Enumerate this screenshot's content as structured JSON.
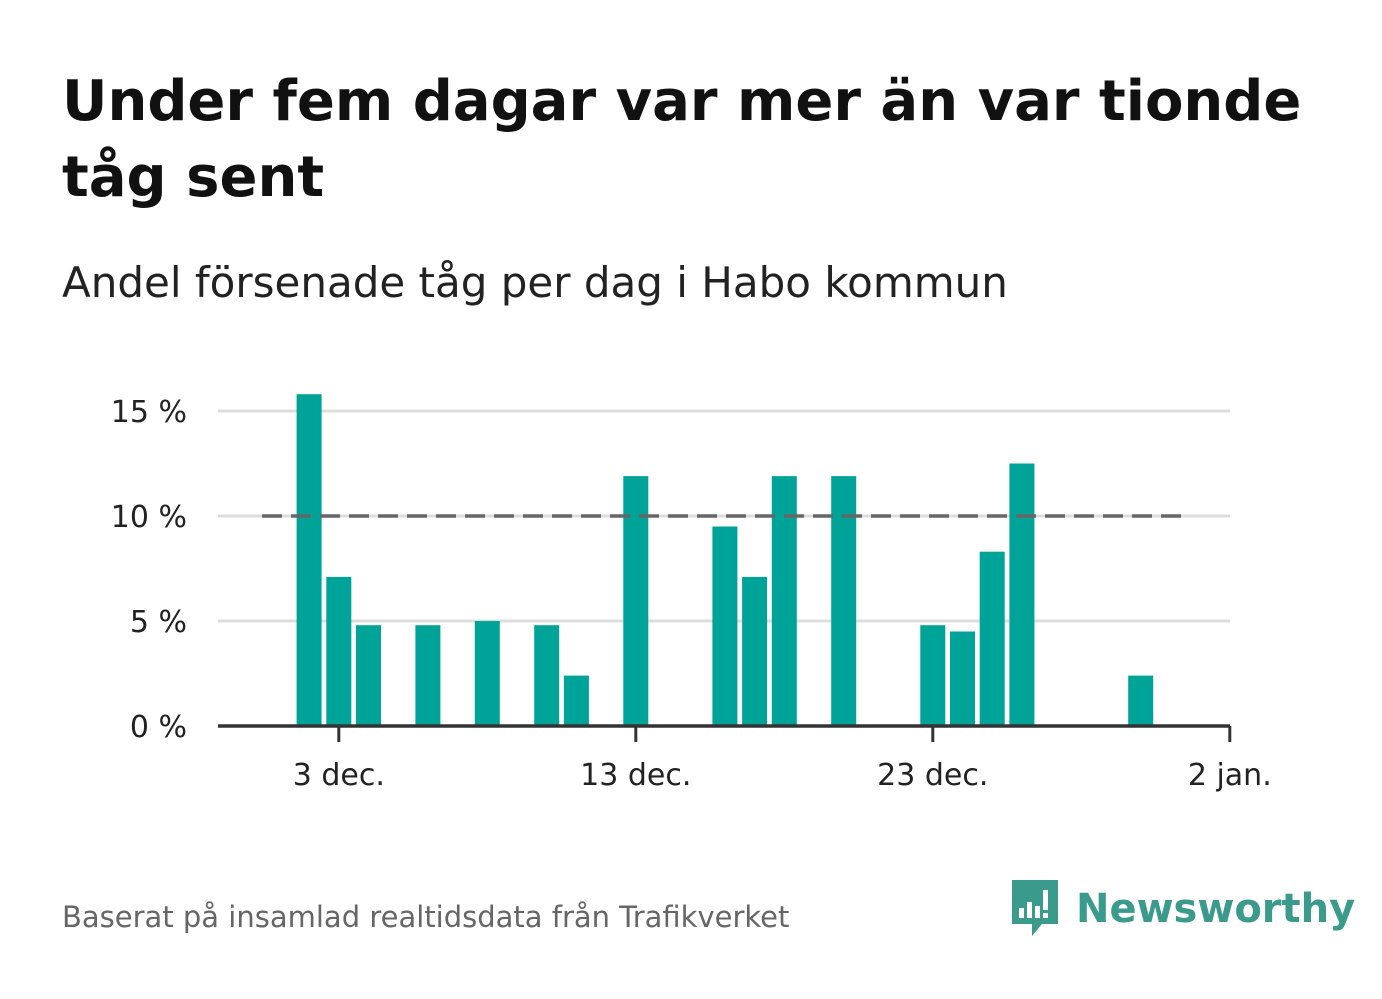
{
  "header": {
    "title": "Under fem dagar var mer än var tionde tåg sent",
    "subtitle": "Andel försenade tåg per dag i Habo kommun"
  },
  "footer": {
    "source": "Baserat på insamlad realtidsdata från Trafikverket",
    "brand": "Newsworthy",
    "brand_icon": "newsworthy-logo-icon"
  },
  "colors": {
    "bar": "#00a398",
    "reference_line": "#666666",
    "grid": "#dddddd",
    "axis": "#333333"
  },
  "chart_data": {
    "type": "bar",
    "title": "Under fem dagar var mer än var tionde tåg sent",
    "subtitle": "Andel försenade tåg per dag i Habo kommun",
    "xlabel": "",
    "ylabel": "",
    "x_start": "2024-11-29",
    "x_end": "2025-01-02",
    "x_tick_dates": [
      "2024-12-03",
      "2024-12-13",
      "2024-12-23",
      "2025-01-02"
    ],
    "x_tick_labels": [
      "3 dec.",
      "13 dec.",
      "23 dec.",
      "2 jan."
    ],
    "ylim": [
      0,
      16
    ],
    "y_ticks": [
      0,
      5,
      10,
      15
    ],
    "y_tick_labels": [
      "0 %",
      "5 %",
      "10 %",
      "15 %"
    ],
    "grid": true,
    "reference_line": {
      "value": 10,
      "style": "dashed"
    },
    "series": [
      {
        "points": [
          {
            "x": "2024-12-02",
            "y": 15.8
          },
          {
            "x": "2024-12-03",
            "y": 7.1
          },
          {
            "x": "2024-12-04",
            "y": 4.8
          },
          {
            "x": "2024-12-06",
            "y": 4.8
          },
          {
            "x": "2024-12-08",
            "y": 5.0
          },
          {
            "x": "2024-12-10",
            "y": 4.8
          },
          {
            "x": "2024-12-11",
            "y": 2.4
          },
          {
            "x": "2024-12-13",
            "y": 11.9
          },
          {
            "x": "2024-12-16",
            "y": 9.5
          },
          {
            "x": "2024-12-17",
            "y": 7.1
          },
          {
            "x": "2024-12-18",
            "y": 11.9
          },
          {
            "x": "2024-12-20",
            "y": 11.9
          },
          {
            "x": "2024-12-23",
            "y": 4.8
          },
          {
            "x": "2024-12-24",
            "y": 4.5
          },
          {
            "x": "2024-12-25",
            "y": 8.3
          },
          {
            "x": "2024-12-26",
            "y": 12.5
          },
          {
            "x": "2024-12-30",
            "y": 2.4
          }
        ]
      }
    ]
  }
}
